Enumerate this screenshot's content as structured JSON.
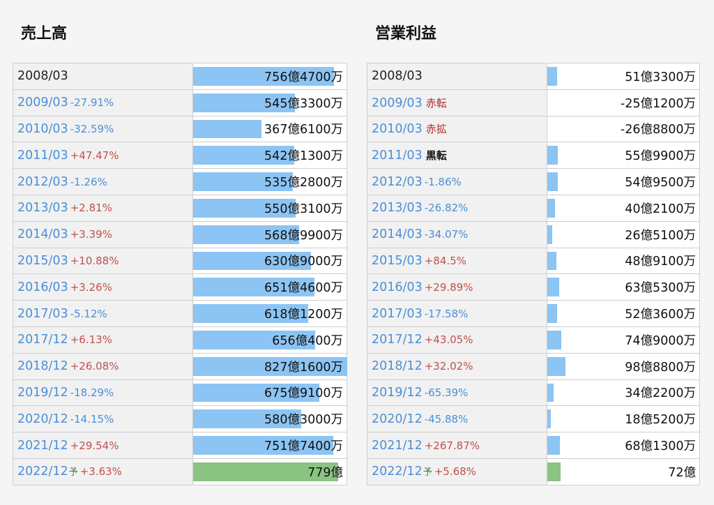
{
  "sales": {
    "title": "売上高",
    "rows": [
      {
        "period": "2008/03",
        "change": "",
        "dir": "",
        "forecast": "",
        "value": "756億4700万",
        "amount": 756.47
      },
      {
        "period": "2009/03",
        "change": "-27.91%",
        "dir": "neg",
        "forecast": "",
        "value": "545億3300万",
        "amount": 545.33
      },
      {
        "period": "2010/03",
        "change": "-32.59%",
        "dir": "neg",
        "forecast": "",
        "value": "367億6100万",
        "amount": 367.61
      },
      {
        "period": "2011/03",
        "change": "+47.47%",
        "dir": "pos",
        "forecast": "",
        "value": "542億1300万",
        "amount": 542.13
      },
      {
        "period": "2012/03",
        "change": "-1.26%",
        "dir": "neg",
        "forecast": "",
        "value": "535億2800万",
        "amount": 535.28
      },
      {
        "period": "2013/03",
        "change": "+2.81%",
        "dir": "pos",
        "forecast": "",
        "value": "550億3100万",
        "amount": 550.31
      },
      {
        "period": "2014/03",
        "change": "+3.39%",
        "dir": "pos",
        "forecast": "",
        "value": "568億9900万",
        "amount": 568.99
      },
      {
        "period": "2015/03",
        "change": "+10.88%",
        "dir": "pos",
        "forecast": "",
        "value": "630億9000万",
        "amount": 630.9
      },
      {
        "period": "2016/03",
        "change": "+3.26%",
        "dir": "pos",
        "forecast": "",
        "value": "651億4600万",
        "amount": 651.46
      },
      {
        "period": "2017/03",
        "change": "-5.12%",
        "dir": "neg",
        "forecast": "",
        "value": "618億1200万",
        "amount": 618.12
      },
      {
        "period": "2017/12",
        "change": "+6.13%",
        "dir": "pos",
        "forecast": "",
        "value": "656億400万",
        "amount": 656.04
      },
      {
        "period": "2018/12",
        "change": "+26.08%",
        "dir": "pos",
        "forecast": "",
        "value": "827億1600万",
        "amount": 827.16
      },
      {
        "period": "2019/12",
        "change": "-18.29%",
        "dir": "neg",
        "forecast": "",
        "value": "675億9100万",
        "amount": 675.91
      },
      {
        "period": "2020/12",
        "change": "-14.15%",
        "dir": "neg",
        "forecast": "",
        "value": "580億3000万",
        "amount": 580.3
      },
      {
        "period": "2021/12",
        "change": "+29.54%",
        "dir": "pos",
        "forecast": "",
        "value": "751億7400万",
        "amount": 751.74
      },
      {
        "period": "2022/12",
        "change": "+3.63%",
        "dir": "pos",
        "forecast": "予",
        "value": "779億",
        "amount": 779.0
      }
    ]
  },
  "profit": {
    "title": "営業利益",
    "rows": [
      {
        "period": "2008/03",
        "change": "",
        "dir": "",
        "tag": "",
        "tagtype": "",
        "forecast": "",
        "value": "51億3300万",
        "amount": 51.33
      },
      {
        "period": "2009/03",
        "change": "",
        "dir": "",
        "tag": "赤転",
        "tagtype": "loss",
        "forecast": "",
        "value": "-25億1200万",
        "amount": -25.12
      },
      {
        "period": "2010/03",
        "change": "",
        "dir": "",
        "tag": "赤拡",
        "tagtype": "loss",
        "forecast": "",
        "value": "-26億8800万",
        "amount": -26.88
      },
      {
        "period": "2011/03",
        "change": "",
        "dir": "",
        "tag": "黒転",
        "tagtype": "black",
        "forecast": "",
        "value": "55億9900万",
        "amount": 55.99
      },
      {
        "period": "2012/03",
        "change": "-1.86%",
        "dir": "neg",
        "tag": "",
        "tagtype": "",
        "forecast": "",
        "value": "54億9500万",
        "amount": 54.95
      },
      {
        "period": "2013/03",
        "change": "-26.82%",
        "dir": "neg",
        "tag": "",
        "tagtype": "",
        "forecast": "",
        "value": "40億2100万",
        "amount": 40.21
      },
      {
        "period": "2014/03",
        "change": "-34.07%",
        "dir": "neg",
        "tag": "",
        "tagtype": "",
        "forecast": "",
        "value": "26億5100万",
        "amount": 26.51
      },
      {
        "period": "2015/03",
        "change": "+84.5%",
        "dir": "pos",
        "tag": "",
        "tagtype": "",
        "forecast": "",
        "value": "48億9100万",
        "amount": 48.91
      },
      {
        "period": "2016/03",
        "change": "+29.89%",
        "dir": "pos",
        "tag": "",
        "tagtype": "",
        "forecast": "",
        "value": "63億5300万",
        "amount": 63.53
      },
      {
        "period": "2017/03",
        "change": "-17.58%",
        "dir": "neg",
        "tag": "",
        "tagtype": "",
        "forecast": "",
        "value": "52億3600万",
        "amount": 52.36
      },
      {
        "period": "2017/12",
        "change": "+43.05%",
        "dir": "pos",
        "tag": "",
        "tagtype": "",
        "forecast": "",
        "value": "74億9000万",
        "amount": 74.9
      },
      {
        "period": "2018/12",
        "change": "+32.02%",
        "dir": "pos",
        "tag": "",
        "tagtype": "",
        "forecast": "",
        "value": "98億8800万",
        "amount": 98.88
      },
      {
        "period": "2019/12",
        "change": "-65.39%",
        "dir": "neg",
        "tag": "",
        "tagtype": "",
        "forecast": "",
        "value": "34億2200万",
        "amount": 34.22
      },
      {
        "period": "2020/12",
        "change": "-45.88%",
        "dir": "neg",
        "tag": "",
        "tagtype": "",
        "forecast": "",
        "value": "18億5200万",
        "amount": 18.52
      },
      {
        "period": "2021/12",
        "change": "+267.87%",
        "dir": "pos",
        "tag": "",
        "tagtype": "",
        "forecast": "",
        "value": "68億1300万",
        "amount": 68.13
      },
      {
        "period": "2022/12",
        "change": "+5.68%",
        "dir": "pos",
        "tag": "",
        "tagtype": "",
        "forecast": "予",
        "value": "72億",
        "amount": 72.0
      }
    ]
  },
  "colors": {
    "bar_actual": "#8cc4f4",
    "bar_forecast": "#8bc482",
    "change_positive": "#c0504d",
    "change_negative": "#4a8fd8",
    "period_link": "#4a8fd8"
  }
}
